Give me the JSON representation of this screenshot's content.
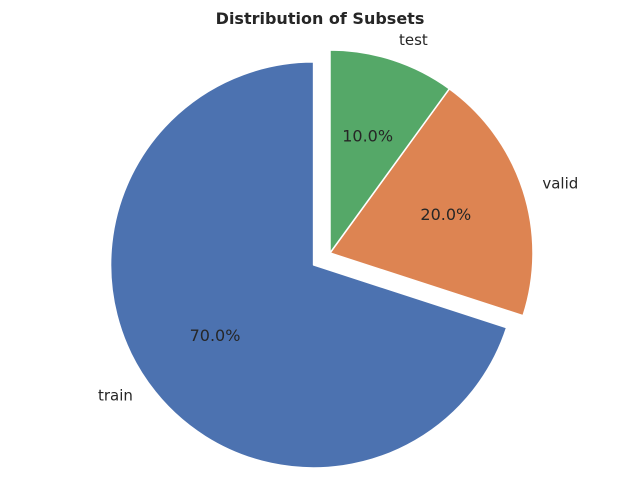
{
  "chart_data": {
    "type": "pie",
    "title": "Distribution of Subsets",
    "labels": [
      "train",
      "valid",
      "test"
    ],
    "values": [
      70.0,
      20.0,
      10.0
    ],
    "percent_labels": [
      "70.0%",
      "20.0%",
      "10.0%"
    ],
    "colors": [
      "#4c72b0",
      "#dd8452",
      "#55a868"
    ],
    "explode": [
      0.1,
      0,
      0
    ],
    "start_angle_deg": 90,
    "direction": "clockwise"
  }
}
